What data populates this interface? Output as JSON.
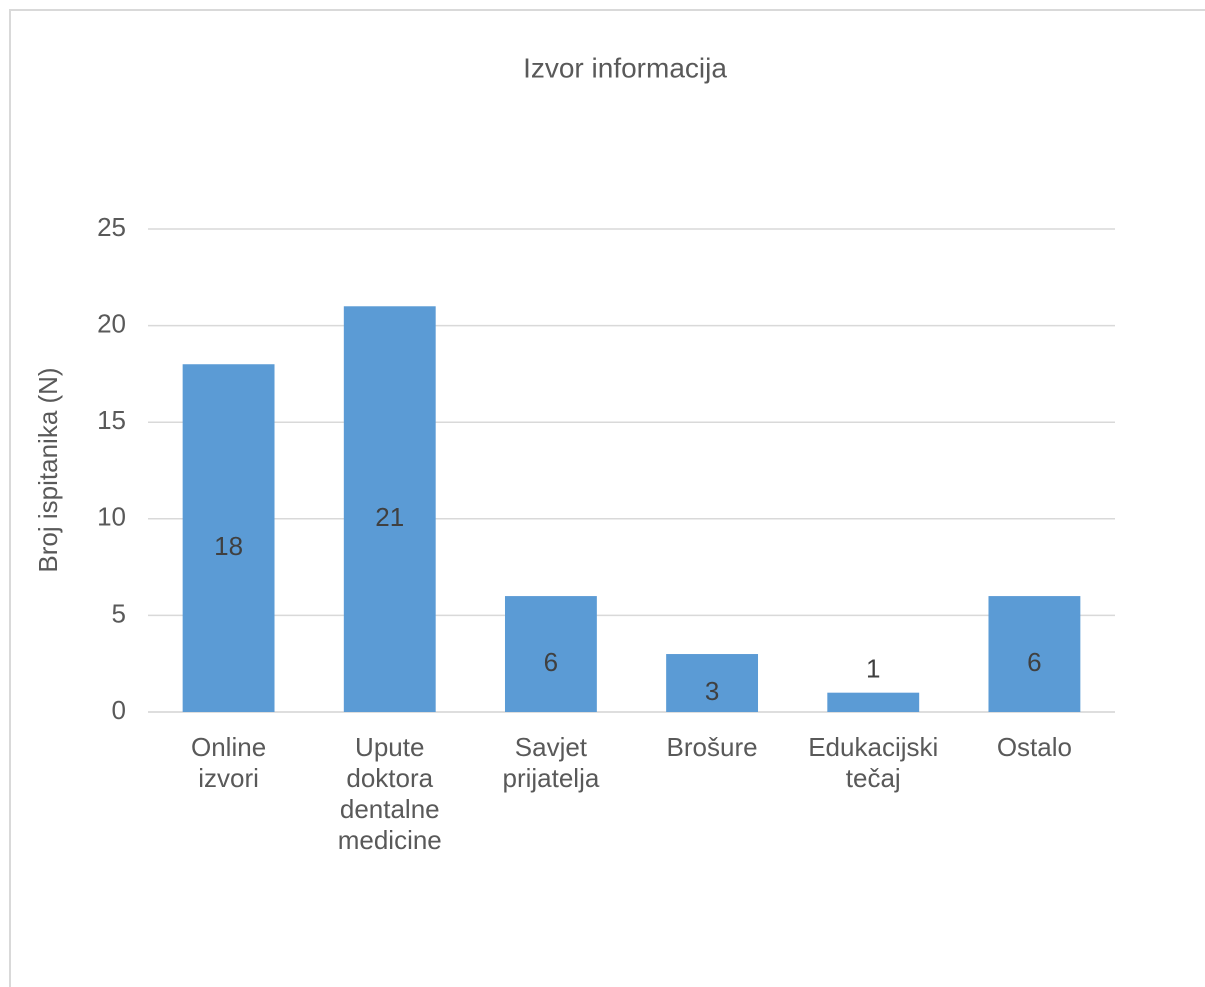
{
  "chart_data": {
    "type": "bar",
    "title": "Izvor informacija",
    "y_label": "Broj ispitanika (N)",
    "categories": [
      "Online\nizvori",
      "Upute\ndoktora\ndentalne\nmedicine",
      "Savjet\nprijatelja",
      "Brošure",
      "Edukacijski\ntečaj",
      "Ostalo"
    ],
    "values": [
      18,
      21,
      6,
      3,
      1,
      6
    ],
    "color": "#5b9bd5",
    "ylim": [
      0,
      25
    ],
    "yticks": [
      0,
      5,
      10,
      15,
      20,
      25
    ],
    "grid": true
  }
}
